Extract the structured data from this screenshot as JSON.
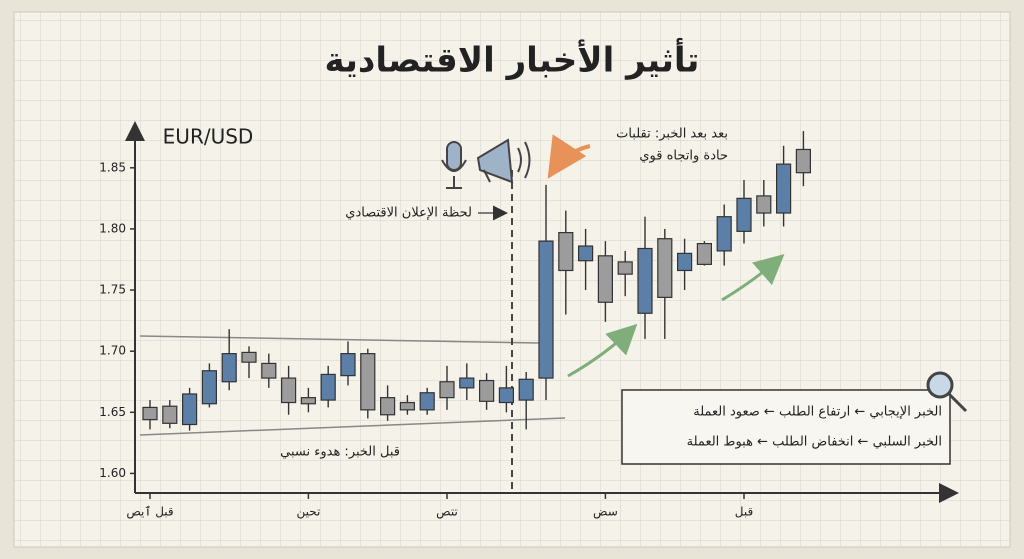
{
  "chart_data": {
    "type": "candlestick",
    "title": "تأثير الأخبار الاقتصادية",
    "y_label": "EUR/USD",
    "categories": [
      "قبل ٱيص",
      null,
      null,
      null,
      null,
      null,
      null,
      null,
      "تحين",
      null,
      null,
      null,
      null,
      null,
      null,
      "تتص",
      null,
      null,
      null,
      null,
      null,
      null,
      null,
      "سض",
      null,
      null,
      null,
      null,
      null,
      null,
      "قبل",
      null,
      null,
      null
    ],
    "open": [
      1.654,
      1.655,
      1.64,
      1.657,
      1.675,
      1.699,
      1.69,
      1.678,
      1.662,
      1.66,
      1.68,
      1.698,
      1.662,
      1.658,
      1.652,
      1.675,
      1.67,
      1.676,
      1.658,
      1.66,
      1.678,
      1.797,
      1.774,
      1.778,
      1.773,
      1.731,
      1.792,
      1.766,
      1.788,
      1.782,
      1.798,
      1.827,
      1.813,
      1.865
    ],
    "high": [
      1.66,
      1.66,
      1.67,
      1.69,
      1.718,
      1.704,
      1.698,
      1.688,
      1.67,
      1.688,
      1.708,
      1.702,
      1.672,
      1.664,
      1.67,
      1.688,
      1.69,
      1.682,
      1.688,
      1.683,
      1.836,
      1.815,
      1.8,
      1.79,
      1.782,
      1.81,
      1.8,
      1.792,
      1.79,
      1.82,
      1.84,
      1.84,
      1.868,
      1.88
    ],
    "low": [
      1.636,
      1.637,
      1.635,
      1.654,
      1.668,
      1.678,
      1.67,
      1.648,
      1.65,
      1.654,
      1.672,
      1.645,
      1.643,
      1.648,
      1.648,
      1.652,
      1.66,
      1.652,
      1.65,
      1.636,
      1.66,
      1.73,
      1.75,
      1.724,
      1.745,
      1.71,
      1.71,
      1.75,
      1.77,
      1.77,
      1.788,
      1.802,
      1.802,
      1.835
    ],
    "close": [
      1.644,
      1.641,
      1.665,
      1.684,
      1.698,
      1.691,
      1.678,
      1.658,
      1.657,
      1.681,
      1.698,
      1.652,
      1.648,
      1.652,
      1.666,
      1.662,
      1.678,
      1.659,
      1.67,
      1.677,
      1.79,
      1.766,
      1.786,
      1.74,
      1.763,
      1.784,
      1.744,
      1.78,
      1.771,
      1.81,
      1.825,
      1.813,
      1.853,
      1.846
    ],
    "up_color": "#5b7fa6",
    "down_color": "#9c9c9c",
    "ylim": [
      1.584,
      1.885
    ],
    "yticks": [
      {
        "value": 1.6,
        "label": "1.60"
      },
      1.65,
      {
        "value": 1.7,
        "label": "1.70"
      },
      1.75,
      {
        "value": 1.8,
        "label": "1.80"
      },
      1.85
    ],
    "annotations": {
      "event": "لحظة الإعلان الاقتصادي",
      "after": [
        "بعد بعد الخبر: تقلبات",
        "حادة واتجاه قوي"
      ],
      "before": "قبل الخبر: هدوء نسبي"
    },
    "legend": [
      "الخبر الإيجابي ← ارتفاع الطلب ← صعود العملة",
      "الخبر السلبي ← انخفاض الطلب ← هبوط العملة"
    ]
  }
}
